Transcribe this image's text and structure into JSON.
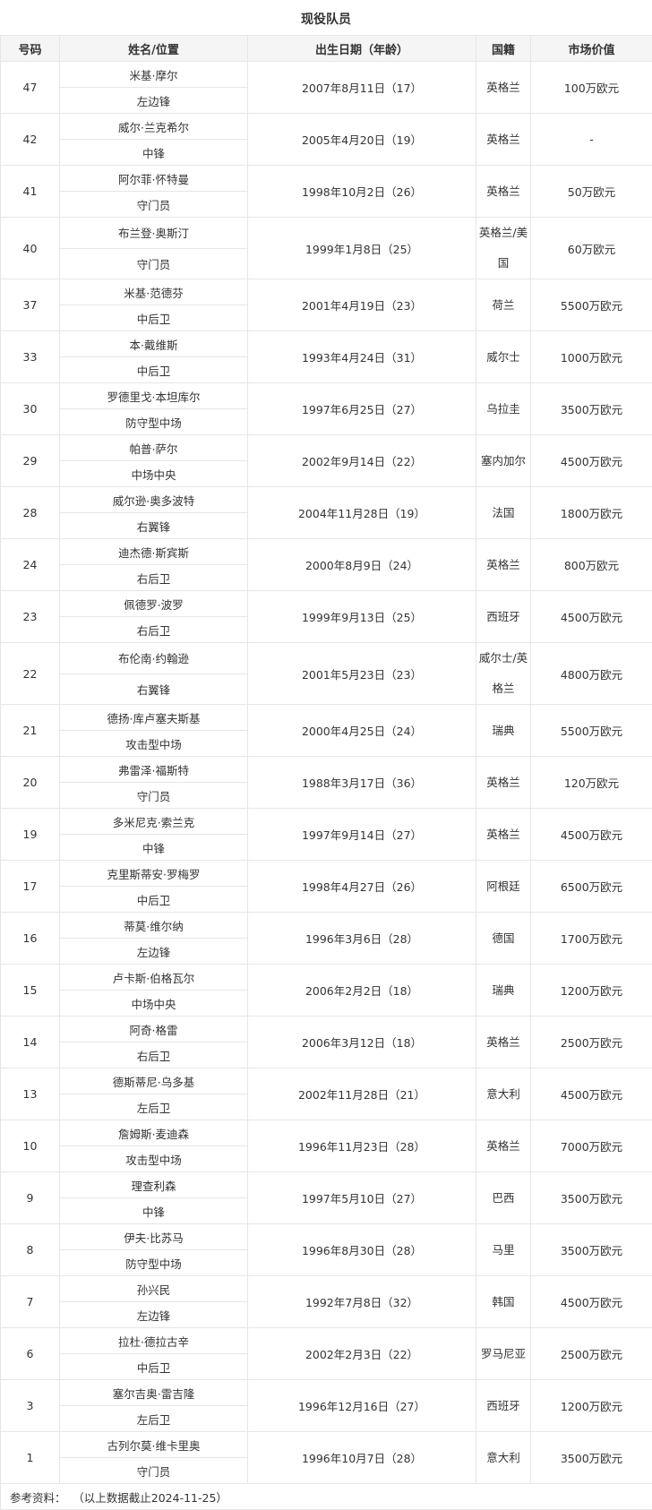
{
  "title": "现役队员",
  "headers": [
    "号码",
    "姓名/位置",
    "出生日期（年龄）",
    "国籍",
    "市场价值"
  ],
  "players": [
    {
      "number": "47",
      "name": "米基·摩尔",
      "position": "左边锋",
      "birth": "2007年8月11日（17）",
      "nationality": "英格兰",
      "value": "100万欧元"
    },
    {
      "number": "42",
      "name": "威尔·兰克希尔",
      "position": "中锋",
      "birth": "2005年4月20日（19）",
      "nationality": "英格兰",
      "value": "-"
    },
    {
      "number": "41",
      "name": "阿尔菲·怀特曼",
      "position": "守门员",
      "birth": "1998年10月2日（26）",
      "nationality": "英格兰",
      "value": "50万欧元"
    },
    {
      "number": "40",
      "name": "布兰登·奥斯汀",
      "position": "守门员",
      "birth": "1999年1月8日（25）",
      "nationality": "英格兰/美国",
      "value": "60万欧元"
    },
    {
      "number": "37",
      "name": "米基·范德芬",
      "position": "中后卫",
      "birth": "2001年4月19日（23）",
      "nationality": "荷兰",
      "value": "5500万欧元"
    },
    {
      "number": "33",
      "name": "本·戴维斯",
      "position": "中后卫",
      "birth": "1993年4月24日（31）",
      "nationality": "威尔士",
      "value": "1000万欧元"
    },
    {
      "number": "30",
      "name": "罗德里戈·本坦库尔",
      "position": "防守型中场",
      "birth": "1997年6月25日（27）",
      "nationality": "乌拉圭",
      "value": "3500万欧元"
    },
    {
      "number": "29",
      "name": "帕普·萨尔",
      "position": "中场中央",
      "birth": "2002年9月14日（22）",
      "nationality": "塞内加尔",
      "value": "4500万欧元"
    },
    {
      "number": "28",
      "name": "威尔逊·奥多波特",
      "position": "右翼锋",
      "birth": "2004年11月28日（19）",
      "nationality": "法国",
      "value": "1800万欧元"
    },
    {
      "number": "24",
      "name": "迪杰德·斯宾斯",
      "position": "右后卫",
      "birth": "2000年8月9日（24）",
      "nationality": "英格兰",
      "value": "800万欧元"
    },
    {
      "number": "23",
      "name": "佩德罗·波罗",
      "position": "右后卫",
      "birth": "1999年9月13日（25）",
      "nationality": "西班牙",
      "value": "4500万欧元"
    },
    {
      "number": "22",
      "name": "布伦南·约翰逊",
      "position": "右翼锋",
      "birth": "2001年5月23日（23）",
      "nationality": "威尔士/英格兰",
      "value": "4800万欧元"
    },
    {
      "number": "21",
      "name": "德扬·库卢塞夫斯基",
      "position": "攻击型中场",
      "birth": "2000年4月25日（24）",
      "nationality": "瑞典",
      "value": "5500万欧元"
    },
    {
      "number": "20",
      "name": "弗雷泽·福斯特",
      "position": "守门员",
      "birth": "1988年3月17日（36）",
      "nationality": "英格兰",
      "value": "120万欧元"
    },
    {
      "number": "19",
      "name": "多米尼克·索兰克",
      "position": "中锋",
      "birth": "1997年9月14日（27）",
      "nationality": "英格兰",
      "value": "4500万欧元"
    },
    {
      "number": "17",
      "name": "克里斯蒂安·罗梅罗",
      "position": "中后卫",
      "birth": "1998年4月27日（26）",
      "nationality": "阿根廷",
      "value": "6500万欧元"
    },
    {
      "number": "16",
      "name": "蒂莫·维尔纳",
      "position": "左边锋",
      "birth": "1996年3月6日（28）",
      "nationality": "德国",
      "value": "1700万欧元"
    },
    {
      "number": "15",
      "name": "卢卡斯·伯格瓦尔",
      "position": "中场中央",
      "birth": "2006年2月2日（18）",
      "nationality": "瑞典",
      "value": "1200万欧元"
    },
    {
      "number": "14",
      "name": "阿奇·格雷",
      "position": "右后卫",
      "birth": "2006年3月12日（18）",
      "nationality": "英格兰",
      "value": "2500万欧元"
    },
    {
      "number": "13",
      "name": "德斯蒂尼·乌多基",
      "position": "左后卫",
      "birth": "2002年11月28日（21）",
      "nationality": "意大利",
      "value": "4500万欧元"
    },
    {
      "number": "10",
      "name": "詹姆斯·麦迪森",
      "position": "攻击型中场",
      "birth": "1996年11月23日（28）",
      "nationality": "英格兰",
      "value": "7000万欧元"
    },
    {
      "number": "9",
      "name": "理查利森",
      "position": "中锋",
      "birth": "1997年5月10日（27）",
      "nationality": "巴西",
      "value": "3500万欧元"
    },
    {
      "number": "8",
      "name": "伊夫·比苏马",
      "position": "防守型中场",
      "birth": "1996年8月30日（28）",
      "nationality": "马里",
      "value": "3500万欧元"
    },
    {
      "number": "7",
      "name": "孙兴民",
      "position": "左边锋",
      "birth": "1992年7月8日（32）",
      "nationality": "韩国",
      "value": "4500万欧元"
    },
    {
      "number": "6",
      "name": "拉杜·德拉古辛",
      "position": "中后卫",
      "birth": "2002年2月3日（22）",
      "nationality": "罗马尼亚",
      "value": "2500万欧元"
    },
    {
      "number": "3",
      "name": "塞尔吉奥·雷吉隆",
      "position": "左后卫",
      "birth": "1996年12月16日（27）",
      "nationality": "西班牙",
      "value": "1200万欧元"
    },
    {
      "number": "1",
      "name": "古列尔莫·维卡里奥",
      "position": "守门员",
      "birth": "1996年10月7日（28）",
      "nationality": "意大利",
      "value": "3500万欧元"
    }
  ],
  "footer": {
    "label": "参考资料：",
    "note": "（以上数据截止2024-11-25）"
  }
}
